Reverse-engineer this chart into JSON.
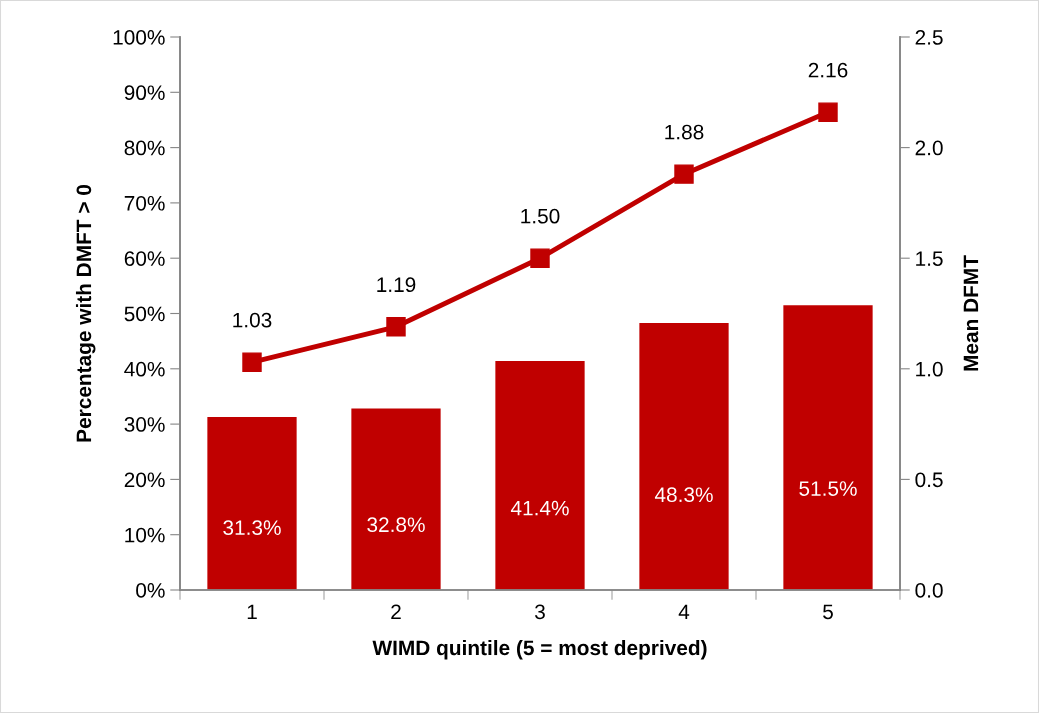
{
  "chart_data": {
    "type": "bar",
    "xlabel": "WIMD quintile (5 = most deprived)",
    "ylabel": "Percentage with DMFT > 0",
    "y2label": "Mean DFMT",
    "categories": [
      "1",
      "2",
      "3",
      "4",
      "5"
    ],
    "series": [
      {
        "color": "#c00000",
        "values": [
          31.3,
          32.8,
          41.4,
          48.3,
          51.5
        ],
        "value_labels": [
          "31.3%",
          "32.8%",
          "41.4%",
          "48.3%",
          "51.5%"
        ]
      },
      {
        "type": "line",
        "axis": "y2",
        "color": "#c00000",
        "marker": "square",
        "line_style": "solid",
        "values": [
          1.03,
          1.19,
          1.5,
          1.88,
          2.16
        ],
        "value_labels": [
          "1.03",
          "1.19",
          "1.50",
          "1.88",
          "2.16"
        ]
      }
    ],
    "ylim": [
      0,
      100
    ],
    "yticks": [
      {
        "value": 0,
        "label": "0%"
      },
      {
        "value": 10,
        "label": "10%"
      },
      {
        "value": 20,
        "label": "20%"
      },
      {
        "value": 30,
        "label": "30%"
      },
      {
        "value": 40,
        "label": "40%"
      },
      {
        "value": 50,
        "label": "50%"
      },
      {
        "value": 60,
        "label": "60%"
      },
      {
        "value": 70,
        "label": "70%"
      },
      {
        "value": 80,
        "label": "80%"
      },
      {
        "value": 90,
        "label": "90%"
      },
      {
        "value": 100,
        "label": "100%"
      }
    ],
    "y2lim": [
      0,
      2.5
    ],
    "y2ticks": [
      {
        "value": 0,
        "label": "0.0"
      },
      {
        "value": 0.5,
        "label": "0.5"
      },
      {
        "value": 1,
        "label": "1.0"
      },
      {
        "value": 1.5,
        "label": "1.5"
      },
      {
        "value": 2,
        "label": "2.0"
      },
      {
        "value": 2.5,
        "label": "2.5"
      }
    ],
    "grid": false,
    "legend": false
  }
}
